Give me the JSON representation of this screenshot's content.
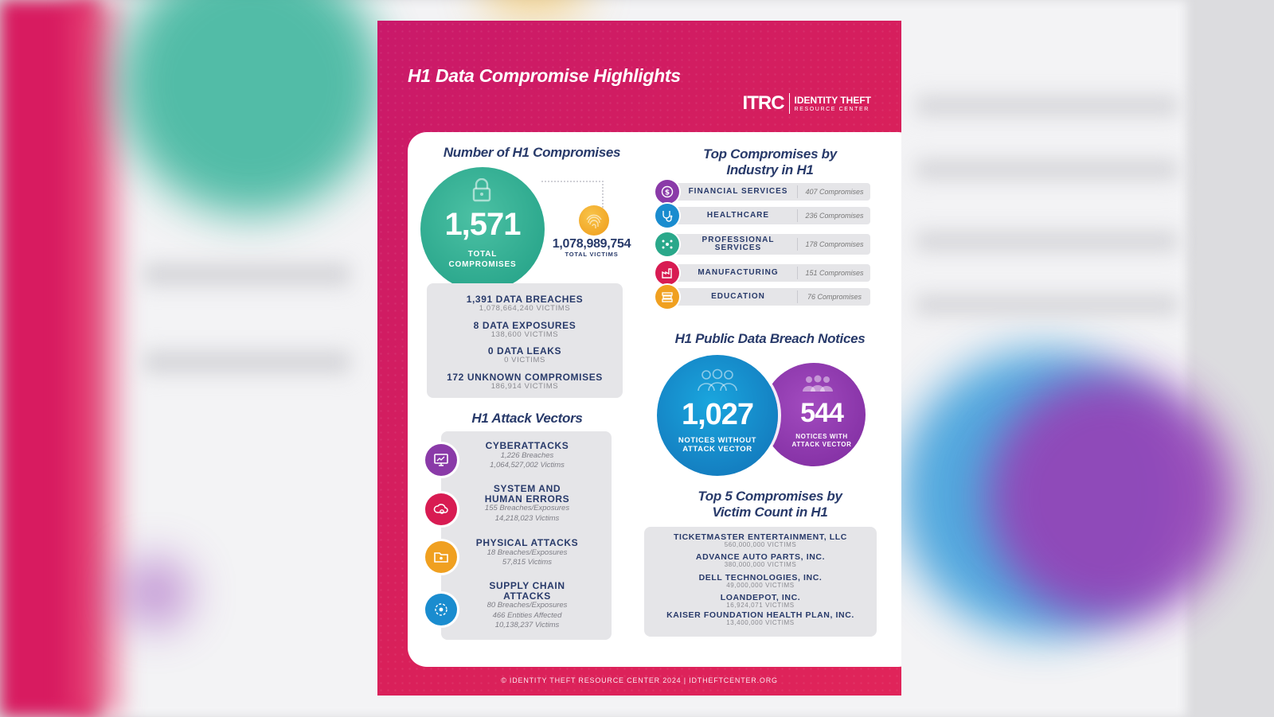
{
  "poster": {
    "title": "H1 Data Compromise Highlights",
    "logo": {
      "mark": "ITRC",
      "line1": "IDENTITY THEFT",
      "line2": "RESOURCE CENTER"
    },
    "footer": "© IDENTITY THEFT RESOURCE CENTER 2024  |  IDTHEFTCENTER.ORG"
  },
  "compromises": {
    "heading": "Number of H1 Compromises",
    "total": "1,571",
    "total_label_1": "TOTAL",
    "total_label_2": "COMPROMISES",
    "victims": "1,078,989,754",
    "victims_label": "TOTAL VICTIMS",
    "breakdown": [
      {
        "title": "1,391 DATA BREACHES",
        "sub": "1,078,664,240 VICTIMS"
      },
      {
        "title": "8 DATA EXPOSURES",
        "sub": "138,600 VICTIMS"
      },
      {
        "title": "0 DATA LEAKS",
        "sub": "0 VICTIMS"
      },
      {
        "title": "172 UNKNOWN COMPROMISES",
        "sub": "186,914 VICTIMS"
      }
    ]
  },
  "vectors": {
    "heading": "H1 Attack Vectors",
    "items": [
      {
        "title": "CYBERATTACKS",
        "lines": [
          "1,226 Breaches",
          "1,064,527,002 Victims"
        ],
        "color": "#8a3aa8",
        "icon": "monitor-icon"
      },
      {
        "title_1": "SYSTEM AND",
        "title_2": "HUMAN ERRORS",
        "lines": [
          "155 Breaches/Exposures",
          "14,218,023 Victims"
        ],
        "color": "#d81b52",
        "icon": "cloud-gear-icon"
      },
      {
        "title": "PHYSICAL ATTACKS",
        "lines": [
          "18 Breaches/Exposures",
          "57,815 Victims"
        ],
        "color": "#f0a020",
        "icon": "folder-icon"
      },
      {
        "title_1": "SUPPLY CHAIN",
        "title_2": "ATTACKS",
        "lines": [
          "80 Breaches/Exposures",
          "466 Entities Affected",
          "10,138,237 Victims"
        ],
        "color": "#1a8ccf",
        "icon": "network-icon"
      }
    ]
  },
  "industry": {
    "heading_1": "Top Compromises by",
    "heading_2": "Industry in H1",
    "items": [
      {
        "name": "FINANCIAL SERVICES",
        "count": "407 Compromises",
        "color": "#8a3aa8",
        "icon": "dollar-icon"
      },
      {
        "name": "HEALTHCARE",
        "count": "236 Compromises",
        "color": "#1a8ccf",
        "icon": "stethoscope-icon"
      },
      {
        "name_1": "PROFESSIONAL",
        "name_2": "SERVICES",
        "count": "178 Compromises",
        "color": "#2aa88a",
        "icon": "people-network-icon"
      },
      {
        "name": "MANUFACTURING",
        "count": "151 Compromises",
        "color": "#d81b52",
        "icon": "factory-icon"
      },
      {
        "name": "EDUCATION",
        "count": "76 Compromises",
        "color": "#f0a020",
        "icon": "books-icon"
      }
    ]
  },
  "notices": {
    "heading": "H1 Public Data Breach Notices",
    "without": "1,027",
    "without_label_1": "NOTICES WITHOUT",
    "without_label_2": "ATTACK VECTOR",
    "with": "544",
    "with_label_1": "NOTICES WITH",
    "with_label_2": "ATTACK VECTOR"
  },
  "top5": {
    "heading_1": "Top 5 Compromises by",
    "heading_2": "Victim Count in H1",
    "items": [
      {
        "name": "TICKETMASTER ENTERTAINMENT, LLC",
        "victims": "560,000,000 VICTIMS"
      },
      {
        "name": "ADVANCE AUTO PARTS, INC.",
        "victims": "380,000,000 VICTIMS"
      },
      {
        "name": "DELL TECHNOLOGIES, INC.",
        "victims": "49,000,000 VICTIMS"
      },
      {
        "name": "LOANDEPOT, INC.",
        "victims": "16,924,071 VICTIMS"
      },
      {
        "name": "KAISER FOUNDATION HEALTH PLAN, INC.",
        "victims": "13,400,000 VICTIMS"
      }
    ]
  },
  "colors": {
    "brand_magenta": "#d81b60",
    "teal": "#2aa88a",
    "navy_text": "#283a6a",
    "blue": "#1a8ccf",
    "purple": "#8a3aa8",
    "orange": "#f0a020"
  }
}
